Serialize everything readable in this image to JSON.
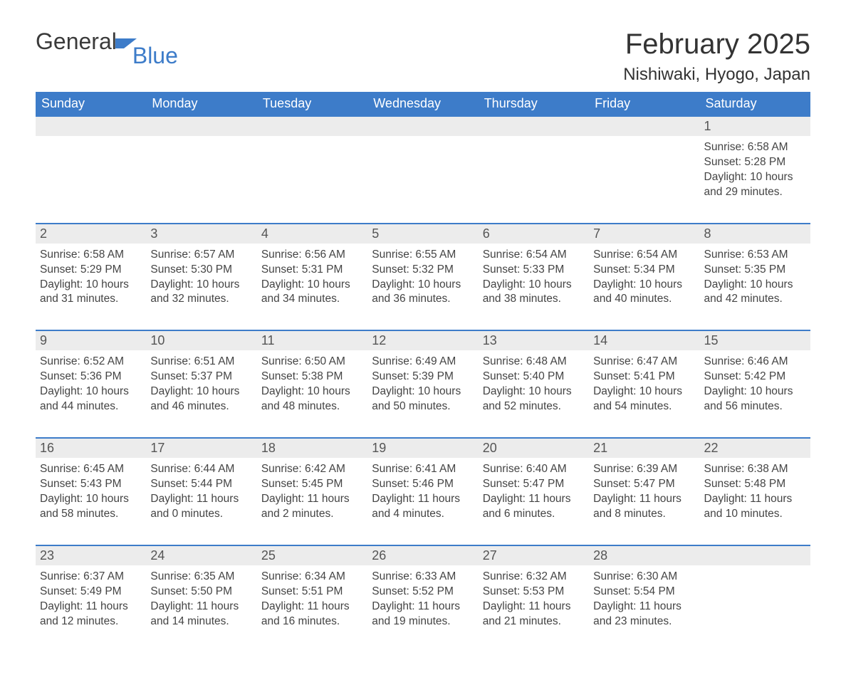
{
  "logo": {
    "text1": "General",
    "text2": "Blue"
  },
  "title": "February 2025",
  "location": "Nishiwaki, Hyogo, Japan",
  "colors": {
    "header_bg": "#3d7cc9",
    "header_text": "#ffffff",
    "daynum_bg": "#ececec",
    "body_text": "#444444",
    "page_bg": "#ffffff",
    "row_border": "#3d7cc9"
  },
  "day_headers": [
    "Sunday",
    "Monday",
    "Tuesday",
    "Wednesday",
    "Thursday",
    "Friday",
    "Saturday"
  ],
  "weeks": [
    [
      null,
      null,
      null,
      null,
      null,
      null,
      {
        "n": "1",
        "sunrise": "6:58 AM",
        "sunset": "5:28 PM",
        "dl": "10 hours and 29 minutes."
      }
    ],
    [
      {
        "n": "2",
        "sunrise": "6:58 AM",
        "sunset": "5:29 PM",
        "dl": "10 hours and 31 minutes."
      },
      {
        "n": "3",
        "sunrise": "6:57 AM",
        "sunset": "5:30 PM",
        "dl": "10 hours and 32 minutes."
      },
      {
        "n": "4",
        "sunrise": "6:56 AM",
        "sunset": "5:31 PM",
        "dl": "10 hours and 34 minutes."
      },
      {
        "n": "5",
        "sunrise": "6:55 AM",
        "sunset": "5:32 PM",
        "dl": "10 hours and 36 minutes."
      },
      {
        "n": "6",
        "sunrise": "6:54 AM",
        "sunset": "5:33 PM",
        "dl": "10 hours and 38 minutes."
      },
      {
        "n": "7",
        "sunrise": "6:54 AM",
        "sunset": "5:34 PM",
        "dl": "10 hours and 40 minutes."
      },
      {
        "n": "8",
        "sunrise": "6:53 AM",
        "sunset": "5:35 PM",
        "dl": "10 hours and 42 minutes."
      }
    ],
    [
      {
        "n": "9",
        "sunrise": "6:52 AM",
        "sunset": "5:36 PM",
        "dl": "10 hours and 44 minutes."
      },
      {
        "n": "10",
        "sunrise": "6:51 AM",
        "sunset": "5:37 PM",
        "dl": "10 hours and 46 minutes."
      },
      {
        "n": "11",
        "sunrise": "6:50 AM",
        "sunset": "5:38 PM",
        "dl": "10 hours and 48 minutes."
      },
      {
        "n": "12",
        "sunrise": "6:49 AM",
        "sunset": "5:39 PM",
        "dl": "10 hours and 50 minutes."
      },
      {
        "n": "13",
        "sunrise": "6:48 AM",
        "sunset": "5:40 PM",
        "dl": "10 hours and 52 minutes."
      },
      {
        "n": "14",
        "sunrise": "6:47 AM",
        "sunset": "5:41 PM",
        "dl": "10 hours and 54 minutes."
      },
      {
        "n": "15",
        "sunrise": "6:46 AM",
        "sunset": "5:42 PM",
        "dl": "10 hours and 56 minutes."
      }
    ],
    [
      {
        "n": "16",
        "sunrise": "6:45 AM",
        "sunset": "5:43 PM",
        "dl": "10 hours and 58 minutes."
      },
      {
        "n": "17",
        "sunrise": "6:44 AM",
        "sunset": "5:44 PM",
        "dl": "11 hours and 0 minutes."
      },
      {
        "n": "18",
        "sunrise": "6:42 AM",
        "sunset": "5:45 PM",
        "dl": "11 hours and 2 minutes."
      },
      {
        "n": "19",
        "sunrise": "6:41 AM",
        "sunset": "5:46 PM",
        "dl": "11 hours and 4 minutes."
      },
      {
        "n": "20",
        "sunrise": "6:40 AM",
        "sunset": "5:47 PM",
        "dl": "11 hours and 6 minutes."
      },
      {
        "n": "21",
        "sunrise": "6:39 AM",
        "sunset": "5:47 PM",
        "dl": "11 hours and 8 minutes."
      },
      {
        "n": "22",
        "sunrise": "6:38 AM",
        "sunset": "5:48 PM",
        "dl": "11 hours and 10 minutes."
      }
    ],
    [
      {
        "n": "23",
        "sunrise": "6:37 AM",
        "sunset": "5:49 PM",
        "dl": "11 hours and 12 minutes."
      },
      {
        "n": "24",
        "sunrise": "6:35 AM",
        "sunset": "5:50 PM",
        "dl": "11 hours and 14 minutes."
      },
      {
        "n": "25",
        "sunrise": "6:34 AM",
        "sunset": "5:51 PM",
        "dl": "11 hours and 16 minutes."
      },
      {
        "n": "26",
        "sunrise": "6:33 AM",
        "sunset": "5:52 PM",
        "dl": "11 hours and 19 minutes."
      },
      {
        "n": "27",
        "sunrise": "6:32 AM",
        "sunset": "5:53 PM",
        "dl": "11 hours and 21 minutes."
      },
      {
        "n": "28",
        "sunrise": "6:30 AM",
        "sunset": "5:54 PM",
        "dl": "11 hours and 23 minutes."
      },
      null
    ]
  ],
  "labels": {
    "sunrise": "Sunrise: ",
    "sunset": "Sunset: ",
    "daylight": "Daylight: "
  }
}
